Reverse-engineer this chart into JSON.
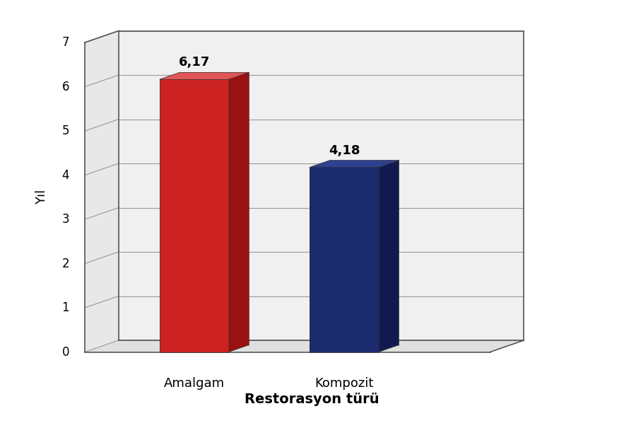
{
  "categories": [
    "Amalgam",
    "Kompozit"
  ],
  "values": [
    6.17,
    4.18
  ],
  "bar_colors_front": [
    "#cc2222",
    "#1c2b6e"
  ],
  "bar_colors_top": [
    "#e05555",
    "#2e4090"
  ],
  "bar_colors_side": [
    "#991111",
    "#111a50"
  ],
  "bar_labels": [
    "6,17",
    "4,18"
  ],
  "ylabel": "Yıl",
  "xlabel": "Restorasyon türü",
  "ylim": [
    0,
    7
  ],
  "yticks": [
    0,
    1,
    2,
    3,
    4,
    5,
    6,
    7
  ],
  "background_color": "#ffffff",
  "label_fontsize": 13,
  "tick_fontsize": 12,
  "xlabel_fontsize": 14,
  "ylabel_fontsize": 13,
  "value_fontsize": 13,
  "wall_color": "#f0f0f0",
  "grid_color": "#aaaaaa",
  "floor_color": "#d8d8d8"
}
